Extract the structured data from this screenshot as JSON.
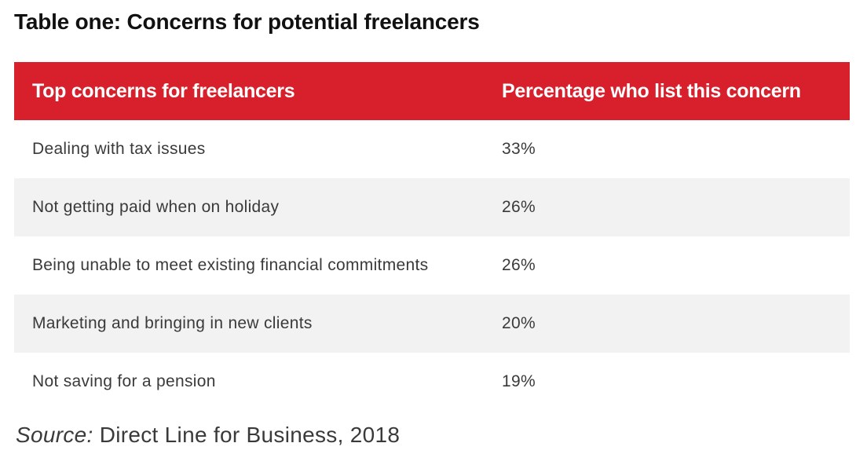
{
  "title": "Table one: Concerns for potential freelancers",
  "table": {
    "headers": [
      "Top concerns for freelancers",
      "Percentage who list this concern"
    ],
    "rows": [
      {
        "concern": "Dealing with tax issues",
        "percentage": "33%"
      },
      {
        "concern": "Not getting paid when on holiday",
        "percentage": "26%"
      },
      {
        "concern": "Being unable to meet existing financial commitments",
        "percentage": "26%"
      },
      {
        "concern": "Marketing and bringing in new clients",
        "percentage": "20%"
      },
      {
        "concern": "Not saving for a pension",
        "percentage": "19%"
      }
    ]
  },
  "source": {
    "label": "Source:",
    "text": " Direct Line for Business, 2018"
  }
}
